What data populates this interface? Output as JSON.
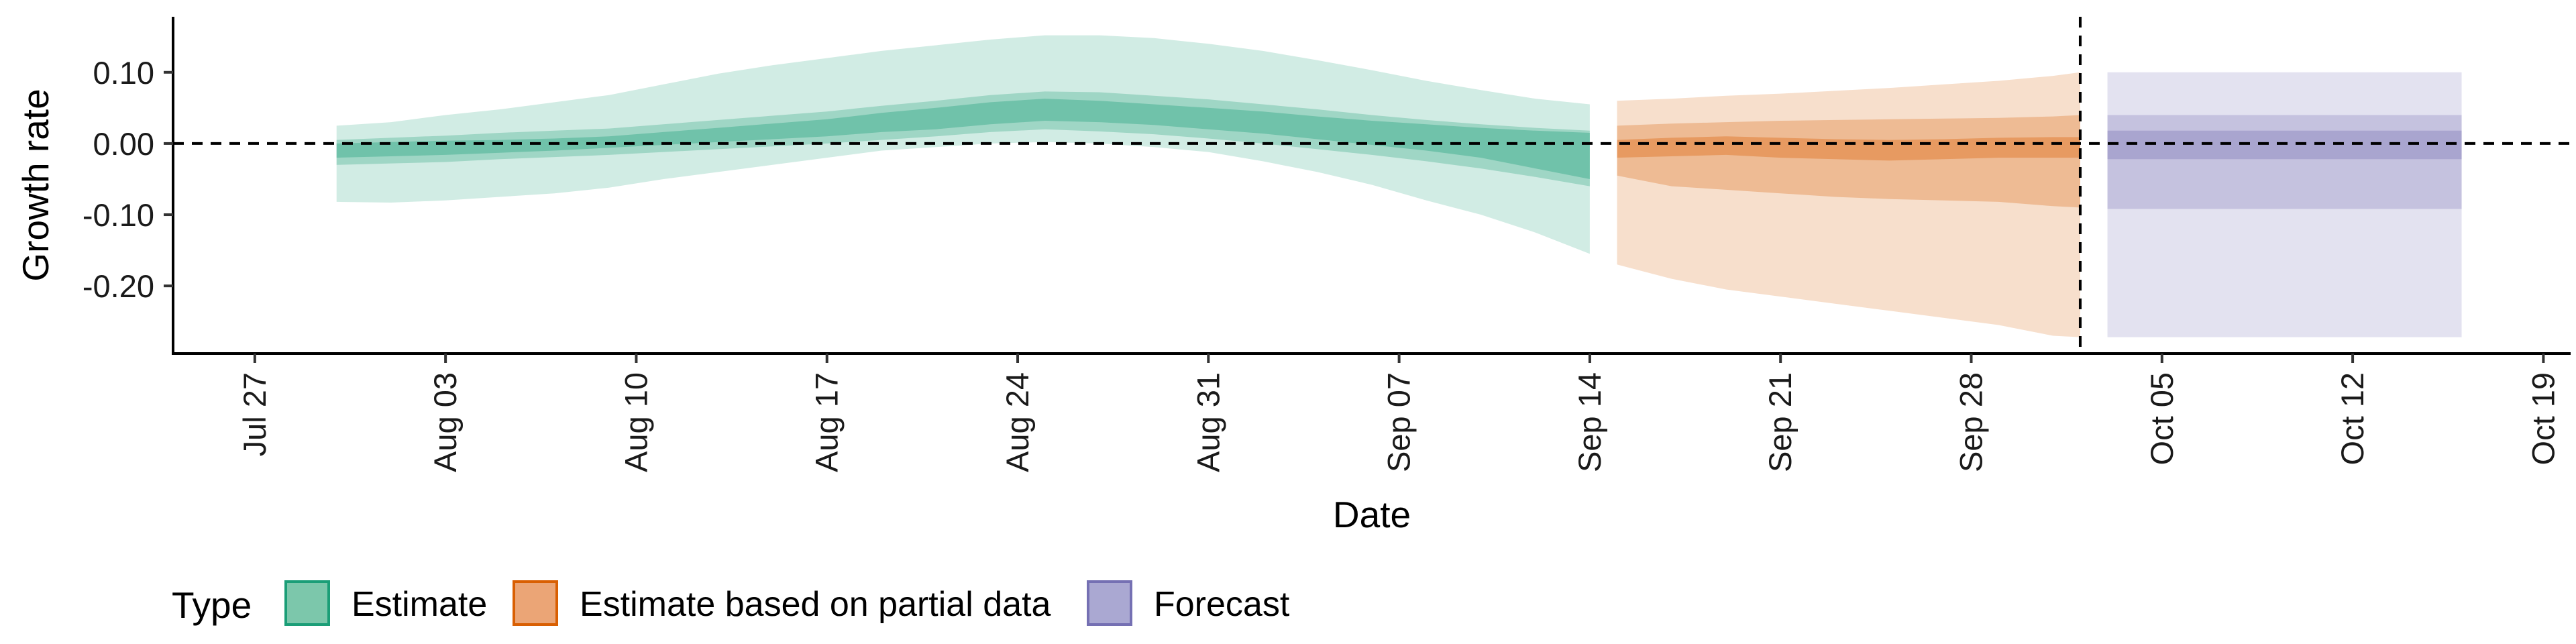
{
  "chart_data": {
    "type": "area",
    "xlabel": "Date",
    "ylabel": "Growth rate",
    "x_axis": {
      "type": "date",
      "range": [
        "2020-07-24",
        "2020-10-20"
      ],
      "ticks": [
        "2020-07-27",
        "2020-08-03",
        "2020-08-10",
        "2020-08-17",
        "2020-08-24",
        "2020-08-31",
        "2020-09-07",
        "2020-09-14",
        "2020-09-21",
        "2020-09-28",
        "2020-10-05",
        "2020-10-12",
        "2020-10-19"
      ],
      "tick_labels": [
        "Jul 27",
        "Aug 03",
        "Aug 10",
        "Aug 17",
        "Aug 24",
        "Aug 31",
        "Sep 07",
        "Sep 14",
        "Sep 21",
        "Sep 28",
        "Oct 05",
        "Oct 12",
        "Oct 19"
      ],
      "tick_label_rotation": "vertical"
    },
    "y_axis": {
      "range": [
        -0.295,
        0.178
      ],
      "ticks": [
        0.1,
        0.0,
        -0.1,
        -0.2
      ],
      "tick_labels": [
        "0.10",
        "0.00",
        "-0.10",
        "-0.20"
      ]
    },
    "reference_lines": [
      {
        "orientation": "horizontal",
        "y": 0.0,
        "style": "dashed",
        "color": "#000000"
      },
      {
        "orientation": "vertical",
        "x": "2020-10-02",
        "style": "dashed",
        "color": "#000000"
      }
    ],
    "grid": false,
    "legend": {
      "title": "Type",
      "placement": "bottom",
      "entries": [
        {
          "label": "Estimate",
          "fill": "#7cc7ab",
          "border": "#1b9e77"
        },
        {
          "label": "Estimate based on partial data",
          "fill": "#eba576",
          "border": "#d95f02"
        },
        {
          "label": "Forecast",
          "fill": "#aaa8d2",
          "border": "#7570b3"
        }
      ]
    },
    "series": [
      {
        "name": "Estimate",
        "color": "#1b9e77",
        "x": [
          "2020-07-30",
          "2020-08-01",
          "2020-08-03",
          "2020-08-05",
          "2020-08-07",
          "2020-08-09",
          "2020-08-11",
          "2020-08-13",
          "2020-08-15",
          "2020-08-17",
          "2020-08-19",
          "2020-08-21",
          "2020-08-23",
          "2020-08-25",
          "2020-08-27",
          "2020-08-29",
          "2020-08-31",
          "2020-09-02",
          "2020-09-04",
          "2020-09-06",
          "2020-09-08",
          "2020-09-10",
          "2020-09-12",
          "2020-09-14"
        ],
        "median": [
          -0.01,
          -0.008,
          -0.006,
          -0.004,
          -0.002,
          0.002,
          0.008,
          0.013,
          0.018,
          0.022,
          0.03,
          0.035,
          0.043,
          0.048,
          0.045,
          0.04,
          0.035,
          0.03,
          0.022,
          0.015,
          0.008,
          0.0,
          -0.01,
          -0.02
        ],
        "inner_lower": [
          -0.02,
          -0.018,
          -0.016,
          -0.013,
          -0.01,
          -0.006,
          -0.002,
          0.002,
          0.006,
          0.01,
          0.016,
          0.02,
          0.027,
          0.032,
          0.03,
          0.026,
          0.02,
          0.014,
          0.006,
          -0.002,
          -0.01,
          -0.02,
          -0.035,
          -0.05
        ],
        "inner_upper": [
          0.0,
          0.002,
          0.004,
          0.005,
          0.007,
          0.01,
          0.016,
          0.022,
          0.028,
          0.034,
          0.043,
          0.05,
          0.058,
          0.063,
          0.06,
          0.055,
          0.05,
          0.045,
          0.038,
          0.032,
          0.027,
          0.022,
          0.018,
          0.015
        ],
        "mid_lower": [
          -0.03,
          -0.028,
          -0.026,
          -0.022,
          -0.019,
          -0.016,
          -0.012,
          -0.008,
          -0.004,
          0.0,
          0.005,
          0.01,
          0.016,
          0.02,
          0.017,
          0.013,
          0.007,
          0.0,
          -0.008,
          -0.016,
          -0.025,
          -0.035,
          -0.047,
          -0.06
        ],
        "mid_upper": [
          0.005,
          0.008,
          0.011,
          0.015,
          0.018,
          0.021,
          0.027,
          0.033,
          0.039,
          0.045,
          0.053,
          0.06,
          0.068,
          0.073,
          0.072,
          0.067,
          0.062,
          0.055,
          0.048,
          0.04,
          0.033,
          0.027,
          0.022,
          0.018
        ],
        "outer_lower": [
          -0.082,
          -0.083,
          -0.08,
          -0.075,
          -0.07,
          -0.062,
          -0.05,
          -0.04,
          -0.03,
          -0.02,
          -0.01,
          -0.005,
          0.0,
          0.002,
          0.0,
          -0.005,
          -0.012,
          -0.025,
          -0.04,
          -0.058,
          -0.08,
          -0.1,
          -0.125,
          -0.155
        ],
        "outer_upper": [
          0.025,
          0.03,
          0.04,
          0.048,
          0.058,
          0.068,
          0.083,
          0.098,
          0.11,
          0.12,
          0.13,
          0.138,
          0.146,
          0.152,
          0.152,
          0.148,
          0.14,
          0.13,
          0.117,
          0.103,
          0.088,
          0.075,
          0.063,
          0.055
        ]
      },
      {
        "name": "Estimate based on partial data",
        "color": "#d95f02",
        "x": [
          "2020-09-15",
          "2020-09-17",
          "2020-09-19",
          "2020-09-21",
          "2020-09-23",
          "2020-09-25",
          "2020-09-27",
          "2020-09-29",
          "2020-10-01",
          "2020-10-02"
        ],
        "median": [
          -0.01,
          -0.006,
          -0.004,
          -0.006,
          -0.01,
          -0.012,
          -0.01,
          -0.008,
          -0.006,
          -0.006
        ],
        "inner_lower": [
          -0.02,
          -0.018,
          -0.016,
          -0.02,
          -0.022,
          -0.024,
          -0.022,
          -0.02,
          -0.02,
          -0.02
        ],
        "inner_upper": [
          0.005,
          0.008,
          0.01,
          0.008,
          0.006,
          0.005,
          0.006,
          0.008,
          0.009,
          0.009
        ],
        "mid_lower": [
          -0.045,
          -0.06,
          -0.065,
          -0.07,
          -0.075,
          -0.078,
          -0.08,
          -0.082,
          -0.088,
          -0.09
        ],
        "mid_upper": [
          0.025,
          0.028,
          0.03,
          0.032,
          0.033,
          0.034,
          0.035,
          0.036,
          0.038,
          0.04
        ],
        "outer_lower": [
          -0.17,
          -0.19,
          -0.205,
          -0.215,
          -0.225,
          -0.235,
          -0.245,
          -0.255,
          -0.27,
          -0.272
        ],
        "outer_upper": [
          0.06,
          0.063,
          0.067,
          0.07,
          0.074,
          0.078,
          0.083,
          0.088,
          0.095,
          0.1
        ]
      },
      {
        "name": "Forecast",
        "color": "#7570b3",
        "x": [
          "2020-10-03",
          "2020-10-16"
        ],
        "median": [
          -0.003,
          -0.003
        ],
        "inner_lower": [
          -0.022,
          -0.022
        ],
        "inner_upper": [
          0.018,
          0.018
        ],
        "mid_lower": [
          -0.092,
          -0.092
        ],
        "mid_upper": [
          0.04,
          0.04
        ],
        "outer_lower": [
          -0.272,
          -0.272
        ],
        "outer_upper": [
          0.1,
          0.1
        ]
      }
    ]
  }
}
